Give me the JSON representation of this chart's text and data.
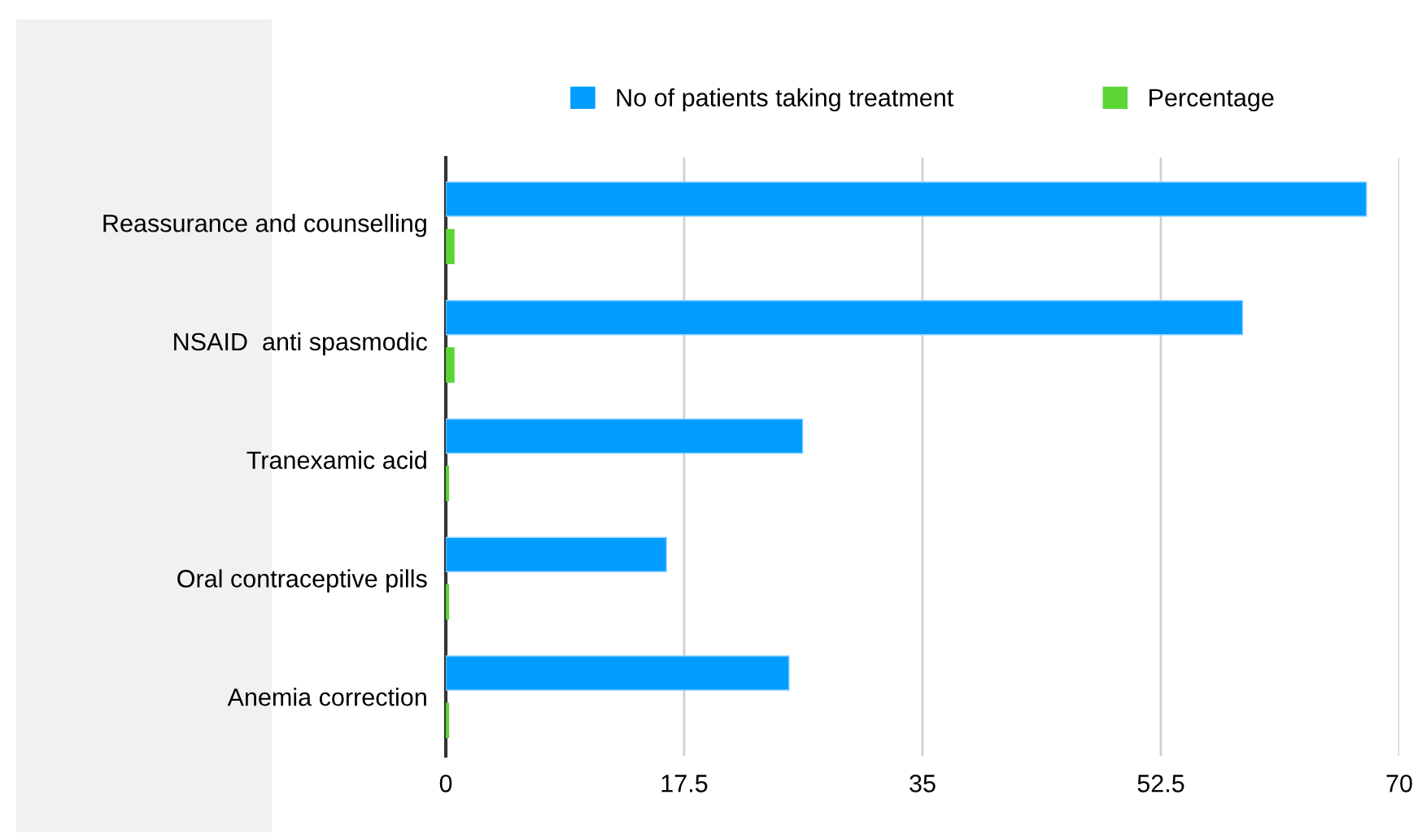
{
  "chart_data": {
    "type": "bar",
    "orientation": "horizontal",
    "categories": [
      "Reassurance and counselling",
      "NSAID  anti spasmodic",
      "Tranexamic acid",
      "Oral contraceptive pills",
      "Anemia correction"
    ],
    "series": [
      {
        "name": "No of patients taking treatment",
        "color": "#009dff",
        "values": [
          67.6,
          58.5,
          26.2,
          16.2,
          25.2
        ]
      },
      {
        "name": "Percentage",
        "color": "#5ad534",
        "values": [
          0.6,
          0.6,
          0.2,
          0.2,
          0.2
        ]
      }
    ],
    "xlim": [
      0,
      70
    ],
    "xticks": [
      0,
      17.5,
      35,
      52.5,
      70
    ],
    "grid": "x",
    "legend": "top"
  }
}
